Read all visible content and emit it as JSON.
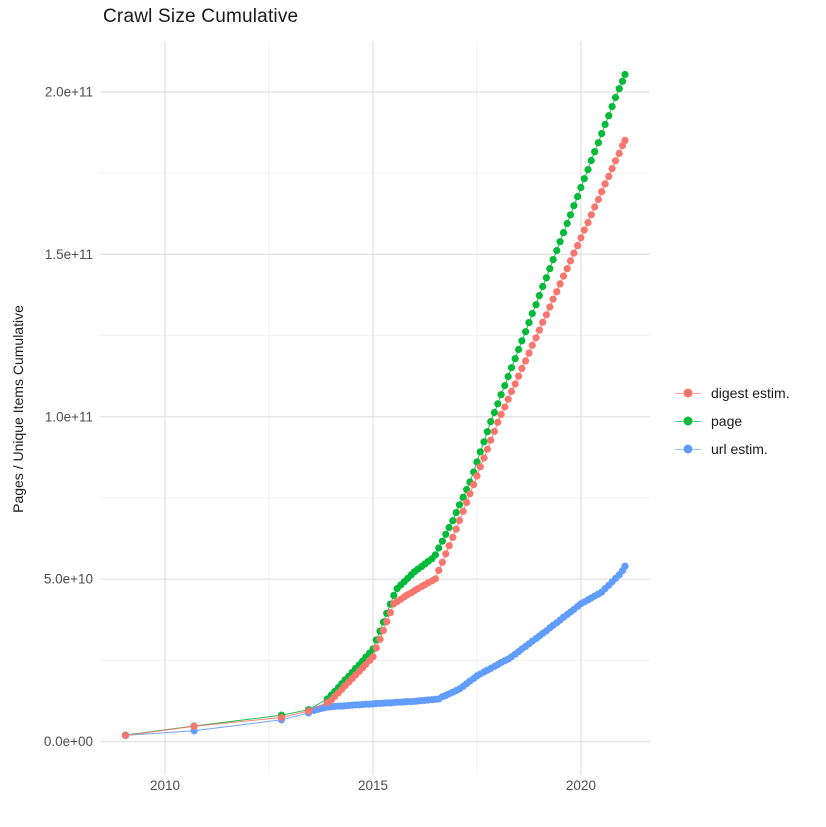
{
  "title": "Crawl Size Cumulative",
  "legend": {
    "items": [
      {
        "label": "digest estim.",
        "color": "#F8766D"
      },
      {
        "label": "page",
        "color": "#00BA38"
      },
      {
        "label": "url estim.",
        "color": "#619CFF"
      }
    ]
  },
  "chart_data": {
    "type": "scatter",
    "title": "Crawl Size Cumulative",
    "xlabel": "",
    "ylabel": "Pages / Unique Items Cumulative",
    "y_unit_multiplier": 1000000000.0,
    "xlim": [
      2008.45,
      2021.66
    ],
    "ylim": [
      -10.3,
      215.7
    ],
    "grid": true,
    "legend_position": "right",
    "x_ticks": [
      {
        "v": 2010,
        "label": "2010"
      },
      {
        "v": 2015,
        "label": "2015"
      },
      {
        "v": 2020,
        "label": "2020"
      }
    ],
    "y_ticks": [
      {
        "v": 0,
        "label": "0.0e+00"
      },
      {
        "v": 50,
        "label": "5.0e+10"
      },
      {
        "v": 100,
        "label": "1.0e+11"
      },
      {
        "v": 150,
        "label": "1.5e+11"
      },
      {
        "v": 200,
        "label": "2.0e+11"
      }
    ],
    "x_minor": [
      2012.5,
      2017.5
    ],
    "y_minor": [
      25,
      75,
      125,
      175
    ],
    "series": [
      {
        "name": "page",
        "color": "#00BA38",
        "points": [
          [
            2009.05,
            2.0
          ],
          [
            2010.7,
            4.8
          ],
          [
            2012.8,
            8.1
          ],
          [
            2013.45,
            9.8
          ],
          [
            2013.9,
            13.1
          ],
          [
            2014.0,
            14.3
          ],
          [
            2014.08,
            15.4
          ],
          [
            2014.17,
            16.6
          ],
          [
            2014.25,
            17.8
          ],
          [
            2014.33,
            19.0
          ],
          [
            2014.42,
            20.1
          ],
          [
            2014.5,
            21.3
          ],
          [
            2014.58,
            22.5
          ],
          [
            2014.67,
            23.6
          ],
          [
            2014.75,
            24.8
          ],
          [
            2014.83,
            26.0
          ],
          [
            2014.92,
            27.2
          ],
          [
            2015.0,
            28.5
          ],
          [
            2015.08,
            31.3
          ],
          [
            2015.17,
            34.0
          ],
          [
            2015.25,
            36.8
          ],
          [
            2015.33,
            39.5
          ],
          [
            2015.42,
            42.3
          ],
          [
            2015.5,
            45.0
          ],
          [
            2015.58,
            47.1
          ],
          [
            2015.67,
            48.2
          ],
          [
            2015.75,
            49.2
          ],
          [
            2015.83,
            50.2
          ],
          [
            2015.92,
            51.3
          ],
          [
            2016.0,
            52.3
          ],
          [
            2016.08,
            53.1
          ],
          [
            2016.17,
            53.9
          ],
          [
            2016.25,
            54.7
          ],
          [
            2016.33,
            55.5
          ],
          [
            2016.42,
            56.3
          ],
          [
            2016.5,
            57.5
          ],
          [
            2016.58,
            59.6
          ],
          [
            2016.67,
            61.7
          ],
          [
            2016.75,
            63.8
          ],
          [
            2016.83,
            65.9
          ],
          [
            2016.92,
            68.0
          ],
          [
            2017.0,
            70.5
          ],
          [
            2017.08,
            72.9
          ],
          [
            2017.17,
            75.2
          ],
          [
            2017.25,
            77.6
          ],
          [
            2017.33,
            79.9
          ],
          [
            2017.42,
            83.0
          ],
          [
            2017.5,
            86.1
          ],
          [
            2017.58,
            89.2
          ],
          [
            2017.67,
            92.3
          ],
          [
            2017.75,
            95.4
          ],
          [
            2017.83,
            98.5
          ],
          [
            2017.92,
            101.3
          ],
          [
            2018.0,
            104.0
          ],
          [
            2018.08,
            106.8
          ],
          [
            2018.17,
            109.6
          ],
          [
            2018.25,
            112.4
          ],
          [
            2018.33,
            115.1
          ],
          [
            2018.42,
            117.9
          ],
          [
            2018.5,
            120.7
          ],
          [
            2018.58,
            123.4
          ],
          [
            2018.67,
            126.2
          ],
          [
            2018.75,
            129.0
          ],
          [
            2018.83,
            131.8
          ],
          [
            2018.92,
            134.5
          ],
          [
            2019.0,
            137.3
          ],
          [
            2019.08,
            140.1
          ],
          [
            2019.17,
            142.8
          ],
          [
            2019.25,
            145.6
          ],
          [
            2019.33,
            148.4
          ],
          [
            2019.42,
            151.2
          ],
          [
            2019.5,
            153.9
          ],
          [
            2019.58,
            156.7
          ],
          [
            2019.67,
            159.5
          ],
          [
            2019.75,
            162.2
          ],
          [
            2019.83,
            165.0
          ],
          [
            2019.92,
            167.8
          ],
          [
            2020.0,
            170.6
          ],
          [
            2020.08,
            173.3
          ],
          [
            2020.17,
            176.1
          ],
          [
            2020.25,
            178.9
          ],
          [
            2020.33,
            181.6
          ],
          [
            2020.42,
            184.4
          ],
          [
            2020.5,
            187.2
          ],
          [
            2020.58,
            190.0
          ],
          [
            2020.67,
            192.7
          ],
          [
            2020.75,
            195.5
          ],
          [
            2020.83,
            198.3
          ],
          [
            2020.92,
            201.0
          ],
          [
            2021.0,
            203.3
          ],
          [
            2021.06,
            205.4
          ]
        ]
      },
      {
        "name": "url estim.",
        "color": "#619CFF",
        "points": [
          [
            2009.05,
            1.9
          ],
          [
            2010.7,
            3.3
          ],
          [
            2012.8,
            6.7
          ],
          [
            2013.45,
            8.8
          ],
          [
            2013.58,
            9.6
          ],
          [
            2013.67,
            9.9
          ],
          [
            2013.75,
            10.2
          ],
          [
            2013.83,
            10.4
          ],
          [
            2013.92,
            10.6
          ],
          [
            2014.0,
            10.7
          ],
          [
            2014.08,
            10.8
          ],
          [
            2014.17,
            10.9
          ],
          [
            2014.25,
            10.9
          ],
          [
            2014.33,
            11.0
          ],
          [
            2014.42,
            11.1
          ],
          [
            2014.5,
            11.2
          ],
          [
            2014.58,
            11.3
          ],
          [
            2014.67,
            11.3
          ],
          [
            2014.75,
            11.4
          ],
          [
            2014.83,
            11.5
          ],
          [
            2014.92,
            11.5
          ],
          [
            2015.0,
            11.6
          ],
          [
            2015.08,
            11.7
          ],
          [
            2015.17,
            11.7
          ],
          [
            2015.25,
            11.8
          ],
          [
            2015.33,
            11.9
          ],
          [
            2015.42,
            11.9
          ],
          [
            2015.5,
            12.0
          ],
          [
            2015.58,
            12.1
          ],
          [
            2015.67,
            12.1
          ],
          [
            2015.75,
            12.2
          ],
          [
            2015.83,
            12.3
          ],
          [
            2015.92,
            12.3
          ],
          [
            2016.0,
            12.4
          ],
          [
            2016.08,
            12.5
          ],
          [
            2016.17,
            12.6
          ],
          [
            2016.25,
            12.7
          ],
          [
            2016.33,
            12.8
          ],
          [
            2016.42,
            12.9
          ],
          [
            2016.5,
            13.0
          ],
          [
            2016.58,
            13.1
          ],
          [
            2016.67,
            13.8
          ],
          [
            2016.75,
            14.2
          ],
          [
            2016.83,
            14.7
          ],
          [
            2016.92,
            15.2
          ],
          [
            2017.0,
            15.7
          ],
          [
            2017.08,
            16.2
          ],
          [
            2017.17,
            17.0
          ],
          [
            2017.25,
            17.8
          ],
          [
            2017.33,
            18.6
          ],
          [
            2017.42,
            19.4
          ],
          [
            2017.5,
            20.2
          ],
          [
            2017.58,
            20.8
          ],
          [
            2017.67,
            21.4
          ],
          [
            2017.75,
            22.0
          ],
          [
            2017.83,
            22.5
          ],
          [
            2017.92,
            23.1
          ],
          [
            2018.0,
            23.7
          ],
          [
            2018.08,
            24.3
          ],
          [
            2018.17,
            24.9
          ],
          [
            2018.25,
            25.4
          ],
          [
            2018.33,
            26.1
          ],
          [
            2018.42,
            26.9
          ],
          [
            2018.5,
            27.7
          ],
          [
            2018.58,
            28.5
          ],
          [
            2018.67,
            29.3
          ],
          [
            2018.75,
            30.1
          ],
          [
            2018.83,
            30.9
          ],
          [
            2018.92,
            31.7
          ],
          [
            2019.0,
            32.5
          ],
          [
            2019.08,
            33.3
          ],
          [
            2019.17,
            34.1
          ],
          [
            2019.25,
            35.0
          ],
          [
            2019.33,
            35.8
          ],
          [
            2019.42,
            36.6
          ],
          [
            2019.5,
            37.4
          ],
          [
            2019.58,
            38.3
          ],
          [
            2019.67,
            39.1
          ],
          [
            2019.75,
            39.9
          ],
          [
            2019.83,
            40.7
          ],
          [
            2019.92,
            41.6
          ],
          [
            2020.0,
            42.4
          ],
          [
            2020.08,
            43.0
          ],
          [
            2020.17,
            43.6
          ],
          [
            2020.25,
            44.2
          ],
          [
            2020.33,
            44.8
          ],
          [
            2020.42,
            45.4
          ],
          [
            2020.5,
            46.0
          ],
          [
            2020.58,
            47.1
          ],
          [
            2020.67,
            48.1
          ],
          [
            2020.75,
            49.2
          ],
          [
            2020.83,
            50.2
          ],
          [
            2020.92,
            51.3
          ],
          [
            2021.0,
            52.6
          ],
          [
            2021.06,
            54.0
          ]
        ]
      },
      {
        "name": "digest estim.",
        "color": "#F8766D",
        "points": [
          [
            2009.05,
            1.9
          ],
          [
            2010.7,
            4.7
          ],
          [
            2012.8,
            7.4
          ],
          [
            2013.45,
            9.4
          ],
          [
            2013.9,
            12.0
          ],
          [
            2014.0,
            12.8
          ],
          [
            2014.08,
            13.9
          ],
          [
            2014.17,
            15.0
          ],
          [
            2014.25,
            16.1
          ],
          [
            2014.33,
            17.2
          ],
          [
            2014.42,
            18.3
          ],
          [
            2014.5,
            19.4
          ],
          [
            2014.58,
            20.5
          ],
          [
            2014.67,
            21.6
          ],
          [
            2014.75,
            22.7
          ],
          [
            2014.83,
            23.8
          ],
          [
            2014.92,
            25.0
          ],
          [
            2015.0,
            26.1
          ],
          [
            2015.08,
            28.8
          ],
          [
            2015.17,
            31.5
          ],
          [
            2015.25,
            34.2
          ],
          [
            2015.33,
            36.9
          ],
          [
            2015.42,
            39.7
          ],
          [
            2015.5,
            42.4
          ],
          [
            2015.58,
            43.1
          ],
          [
            2015.67,
            43.8
          ],
          [
            2015.75,
            44.5
          ],
          [
            2015.83,
            45.2
          ],
          [
            2015.92,
            45.8
          ],
          [
            2016.0,
            46.5
          ],
          [
            2016.08,
            47.1
          ],
          [
            2016.17,
            47.7
          ],
          [
            2016.25,
            48.3
          ],
          [
            2016.33,
            48.9
          ],
          [
            2016.42,
            49.5
          ],
          [
            2016.5,
            50.1
          ],
          [
            2016.58,
            52.7
          ],
          [
            2016.67,
            55.2
          ],
          [
            2016.75,
            57.8
          ],
          [
            2016.83,
            60.3
          ],
          [
            2016.92,
            62.9
          ],
          [
            2017.0,
            65.4
          ],
          [
            2017.08,
            68.1
          ],
          [
            2017.17,
            70.9
          ],
          [
            2017.25,
            73.6
          ],
          [
            2017.33,
            76.3
          ],
          [
            2017.42,
            79.1
          ],
          [
            2017.5,
            81.8
          ],
          [
            2017.58,
            84.6
          ],
          [
            2017.67,
            87.3
          ],
          [
            2017.75,
            90.0
          ],
          [
            2017.83,
            92.8
          ],
          [
            2017.92,
            95.5
          ],
          [
            2018.0,
            98.3
          ],
          [
            2018.08,
            100.7
          ],
          [
            2018.17,
            103.0
          ],
          [
            2018.25,
            105.4
          ],
          [
            2018.33,
            107.8
          ],
          [
            2018.42,
            110.1
          ],
          [
            2018.5,
            112.5
          ],
          [
            2018.58,
            114.9
          ],
          [
            2018.67,
            117.2
          ],
          [
            2018.75,
            119.6
          ],
          [
            2018.83,
            122.0
          ],
          [
            2018.92,
            124.3
          ],
          [
            2019.0,
            126.7
          ],
          [
            2019.08,
            129.1
          ],
          [
            2019.17,
            131.4
          ],
          [
            2019.25,
            133.8
          ],
          [
            2019.33,
            136.2
          ],
          [
            2019.42,
            138.5
          ],
          [
            2019.5,
            140.9
          ],
          [
            2019.58,
            143.3
          ],
          [
            2019.67,
            145.6
          ],
          [
            2019.75,
            148.0
          ],
          [
            2019.83,
            150.4
          ],
          [
            2019.92,
            152.7
          ],
          [
            2020.0,
            155.1
          ],
          [
            2020.08,
            157.5
          ],
          [
            2020.17,
            159.8
          ],
          [
            2020.25,
            162.2
          ],
          [
            2020.33,
            164.6
          ],
          [
            2020.42,
            166.9
          ],
          [
            2020.5,
            169.3
          ],
          [
            2020.58,
            171.7
          ],
          [
            2020.67,
            174.0
          ],
          [
            2020.75,
            176.4
          ],
          [
            2020.83,
            178.8
          ],
          [
            2020.92,
            181.1
          ],
          [
            2021.0,
            183.5
          ],
          [
            2021.06,
            185.1
          ]
        ]
      }
    ]
  }
}
